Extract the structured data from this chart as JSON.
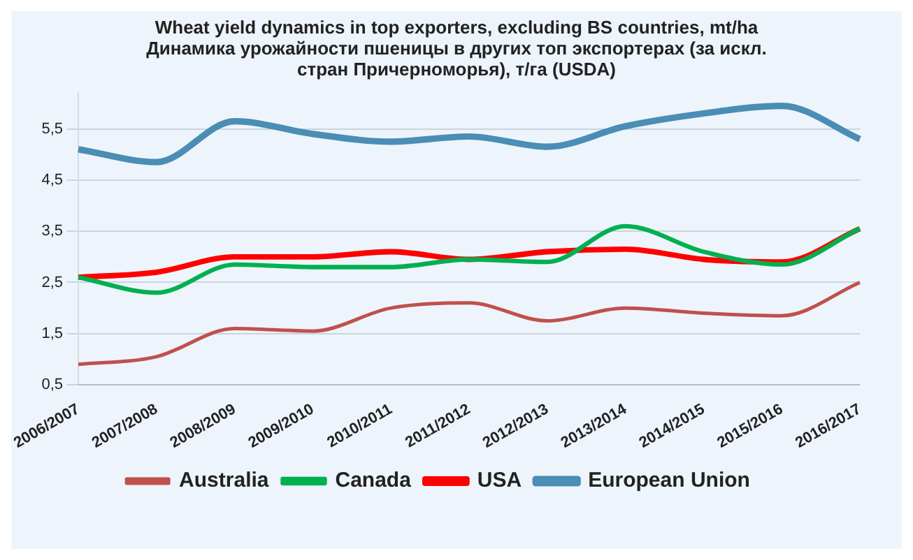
{
  "chart_data": {
    "type": "line",
    "title": "Wheat yield dynamics in top exporters, excluding BS countries, mt/ha",
    "subtitle": "Динамика урожайности пшеницы в других топ экспортерах (за искл. стран Причерноморья), т/га (USDA)",
    "categories": [
      "2006/2007",
      "2007/2008",
      "2008/2009",
      "2009/2010",
      "2010/2011",
      "2011/2012",
      "2012/2013",
      "2013/2014",
      "2014/2015",
      "2015/2016",
      "2016/2017"
    ],
    "series": [
      {
        "name": "Australia",
        "color": "#c0504d",
        "values": [
          0.9,
          1.05,
          1.6,
          1.55,
          2.0,
          2.1,
          1.75,
          2.0,
          1.9,
          1.85,
          2.5
        ]
      },
      {
        "name": "Canada",
        "color": "#00b050",
        "values": [
          2.6,
          2.3,
          2.85,
          2.8,
          2.8,
          2.95,
          2.9,
          3.6,
          3.1,
          2.85,
          3.55
        ]
      },
      {
        "name": "USA",
        "color": "#ff0000",
        "values": [
          2.6,
          2.7,
          3.0,
          3.0,
          3.1,
          2.95,
          3.1,
          3.15,
          2.95,
          2.9,
          3.55
        ]
      },
      {
        "name": "European Union",
        "color": "#4a8db5",
        "values": [
          5.1,
          4.85,
          5.65,
          5.4,
          5.25,
          5.35,
          5.15,
          5.55,
          5.8,
          5.95,
          5.3
        ]
      }
    ],
    "ylim": [
      0.5,
      6.2
    ],
    "yticks": [
      {
        "value": 0.5,
        "label": "0,5"
      },
      {
        "value": 1.5,
        "label": "1,5"
      },
      {
        "value": 2.5,
        "label": "2,5"
      },
      {
        "value": 3.5,
        "label": "3,5"
      },
      {
        "value": 4.5,
        "label": "4,5"
      },
      {
        "value": 5.5,
        "label": "5,5"
      }
    ],
    "grid": "y",
    "legend": "bottom",
    "marker": "none",
    "line_style": "solid"
  }
}
